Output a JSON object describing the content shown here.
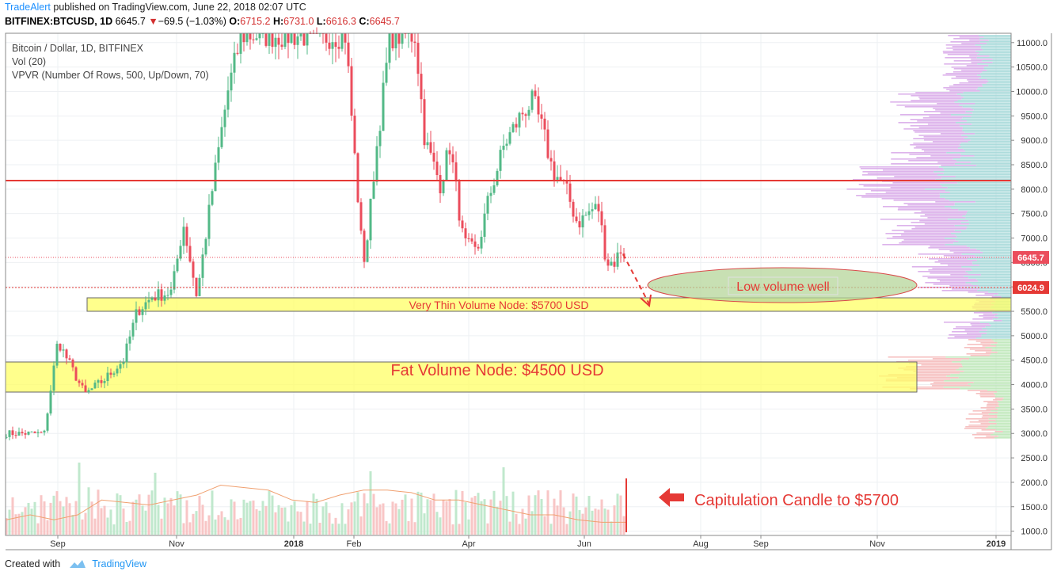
{
  "header": {
    "author": "TradeAlert",
    "published": "published on TradingView.com, June 22, 2018 02:07 UTC",
    "symbol": "BITFINEX:BTCUSD, 1D",
    "last": "6645.7",
    "arrow": "▼",
    "change": "−69.5 (−1.03%)",
    "o_label": "O:",
    "o_val": "6715.2",
    "h_label": "H:",
    "h_val": "6731.0",
    "l_label": "L:",
    "l_val": "6616.3",
    "c_label": "C:",
    "c_val": "6645.7"
  },
  "legend": {
    "line1": "Bitcoin / Dollar, 1D, BITFINEX",
    "line2": "Vol (20)",
    "line3": "VPVR (Number Of Rows, 500, Up/Down, 70)"
  },
  "footer": {
    "created_with": "Created with",
    "brand": "TradingView"
  },
  "colors": {
    "up": "#53b987",
    "down": "#eb4d5c",
    "resistance": "#e53935",
    "highlight": "#ffff66",
    "ellipse": "#b5d69a",
    "vp_purple": "#d7a6e8",
    "vp_teal": "#9fd6d6",
    "vp_green": "#b9e5b3",
    "vp_pink": "#f4b6b6"
  },
  "chart_data": {
    "type": "candlestick",
    "title": "Bitcoin / Dollar, 1D, BITFINEX",
    "x_ticks": [
      "Sep",
      "Nov",
      "2018",
      "Feb",
      "Apr",
      "Jun",
      "Aug",
      "Sep",
      "Nov",
      "2019"
    ],
    "y_ticks": [
      "11000.0",
      "10500.0",
      "10000.0",
      "9500.0",
      "9000.0",
      "8500.0",
      "8000.0",
      "7500.0",
      "7000.0",
      "6500.0",
      "6000.0",
      "5500.0",
      "5000.0",
      "4500.0",
      "4000.0",
      "3500.0",
      "3000.0",
      "2500.0",
      "2000.0",
      "1500.0",
      "1000.0"
    ],
    "ylim": [
      930,
      11150
    ],
    "price_labels": {
      "last": "6645.7",
      "level": "6024.9"
    },
    "annotations": {
      "low_volume_well": "Low volume well",
      "thin_node": "Very Thin Volume Node: $5700 USD",
      "fat_node": "Fat Volume Node: $4500 USD",
      "capitulation": "Capitulation Candle to $5700"
    },
    "levels": {
      "resistance": 8200,
      "last_price": 6645.7,
      "dotted_support": 6024.9,
      "thin_node_low": 5550,
      "thin_node_high": 5820,
      "fat_node_low": 3880,
      "fat_node_high": 4500
    },
    "price_path": [
      [
        "2017-08-25",
        3000
      ],
      [
        "2017-09-01",
        4900
      ],
      [
        "2017-09-15",
        3800
      ],
      [
        "2017-09-25",
        4100
      ],
      [
        "2017-10-05",
        4500
      ],
      [
        "2017-10-12",
        5500
      ],
      [
        "2017-10-20",
        5800
      ],
      [
        "2017-10-30",
        5900
      ],
      [
        "2017-11-05",
        7300
      ],
      [
        "2017-11-12",
        5800
      ],
      [
        "2017-11-20",
        8000
      ],
      [
        "2017-11-28",
        10000
      ],
      [
        "2017-12-05",
        11150
      ],
      [
        "2017-12-17",
        11150
      ],
      [
        "2018-01-05",
        11150
      ],
      [
        "2018-01-16",
        11100
      ],
      [
        "2018-01-20",
        11150
      ],
      [
        "2018-01-28",
        11150
      ],
      [
        "2018-02-01",
        9000
      ],
      [
        "2018-02-05",
        7000
      ],
      [
        "2018-02-07",
        6500
      ],
      [
        "2018-02-12",
        8500
      ],
      [
        "2018-02-20",
        11150
      ],
      [
        "2018-03-05",
        11150
      ],
      [
        "2018-03-10",
        9000
      ],
      [
        "2018-03-18",
        8100
      ],
      [
        "2018-03-23",
        8900
      ],
      [
        "2018-03-30",
        6900
      ],
      [
        "2018-04-06",
        6700
      ],
      [
        "2018-04-12",
        7800
      ],
      [
        "2018-04-20",
        8900
      ],
      [
        "2018-04-30",
        9600
      ],
      [
        "2018-05-05",
        9800
      ],
      [
        "2018-05-10",
        9200
      ],
      [
        "2018-05-15",
        8400
      ],
      [
        "2018-05-22",
        8000
      ],
      [
        "2018-05-28",
        7300
      ],
      [
        "2018-06-05",
        7600
      ],
      [
        "2018-06-08",
        7600
      ],
      [
        "2018-06-12",
        6500
      ],
      [
        "2018-06-16",
        6500
      ],
      [
        "2018-06-20",
        6800
      ],
      [
        "2018-06-22",
        6645.7
      ]
    ],
    "volume_ma": [
      1300,
      1400,
      1300,
      1400,
      1700,
      1650,
      1600,
      1700,
      1800,
      2000,
      1950,
      1900,
      1700,
      1650,
      1800,
      1900,
      1900,
      1850,
      1700,
      1700,
      1600,
      1500,
      1400,
      1400,
      1300,
      1250,
      1250
    ]
  }
}
